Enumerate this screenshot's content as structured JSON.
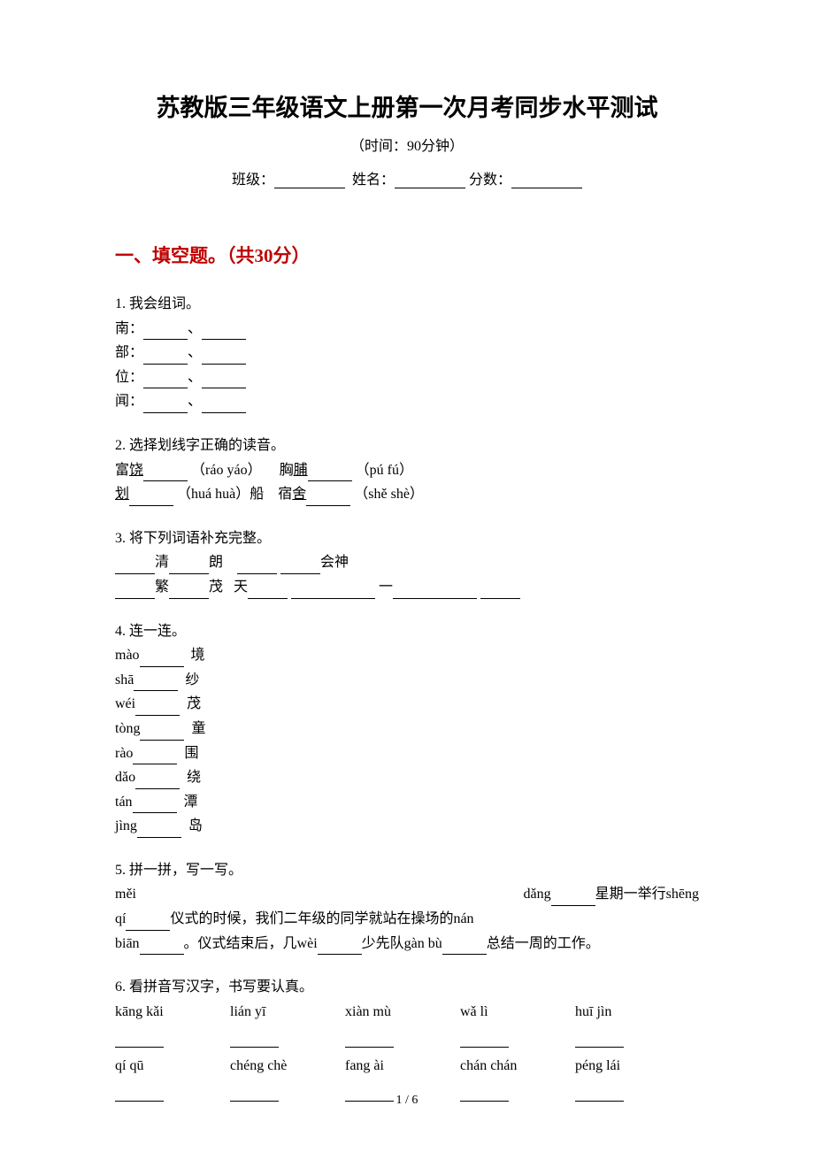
{
  "title": "苏教版三年级语文上册第一次月考同步水平测试",
  "subtitle": "（时间：90分钟）",
  "info": {
    "class_label": "班级：",
    "name_label": "姓名：",
    "score_label": "分数："
  },
  "section1": {
    "header": "一、填空题。（共30分）",
    "q1": {
      "title": "1. 我会组词。",
      "items": [
        "南：",
        "部：",
        "位：",
        "闻："
      ],
      "sep": "、"
    },
    "q2": {
      "title": "2. 选择划线字正确的读音。",
      "line1_a": "富",
      "line1_a_char": "饶",
      "line1_a_pinyin": "（ráo yáo）",
      "line1_b": "胸",
      "line1_b_char": "脯",
      "line1_b_pinyin": "（pú fú）",
      "line2_a_char": "划",
      "line2_a_pinyin": "（huá huà）船",
      "line2_b": "宿",
      "line2_b_char": "舍",
      "line2_b_pinyin": "（shě shè）"
    },
    "q3": {
      "title": "3. 将下列词语补充完整。",
      "line1_a": "清",
      "line1_b": "朗",
      "line1_c": "会神",
      "line2_a": "繁",
      "line2_b": "茂",
      "line2_c": "天",
      "line2_d": "一"
    },
    "q4": {
      "title": "4. 连一连。",
      "items": [
        {
          "py": "mào",
          "ch": "境"
        },
        {
          "py": "shā",
          "ch": "纱"
        },
        {
          "py": "wéi",
          "ch": "茂"
        },
        {
          "py": "tòng",
          "ch": "童"
        },
        {
          "py": "rào",
          "ch": "围"
        },
        {
          "py": "dǎo",
          "ch": "绕"
        },
        {
          "py": "tán",
          "ch": "潭"
        },
        {
          "py": "jìng",
          "ch": "岛"
        }
      ]
    },
    "q5": {
      "title": "5. 拼一拼，写一写。",
      "t1": "měi",
      "t2": "dǎng",
      "t3": "星期一举行shēng",
      "t4": " qí",
      "t5": "仪式的时候，我们二年级的同学就站在操场的nán",
      "t6": " biān",
      "t7": "。仪式结束后，几wèi",
      "t8": "少先队gàn bù",
      "t9": "总结一周的工作。"
    },
    "q6": {
      "title": "6. 看拼音写汉字，书写要认真。",
      "row1": [
        "kāng kǎi",
        "lián yī",
        "xiàn mù",
        "wǎ lì",
        "huī jìn"
      ],
      "row2": [
        "qí qū",
        "chéng chè",
        "fang ài",
        "chán chán",
        "péng lái"
      ]
    }
  },
  "page_num": "1 / 6",
  "colors": {
    "text": "#000000",
    "section_header": "#bf0000",
    "background": "#ffffff"
  },
  "font": {
    "title_size": 27,
    "body_size": 16,
    "section_size": 21
  }
}
